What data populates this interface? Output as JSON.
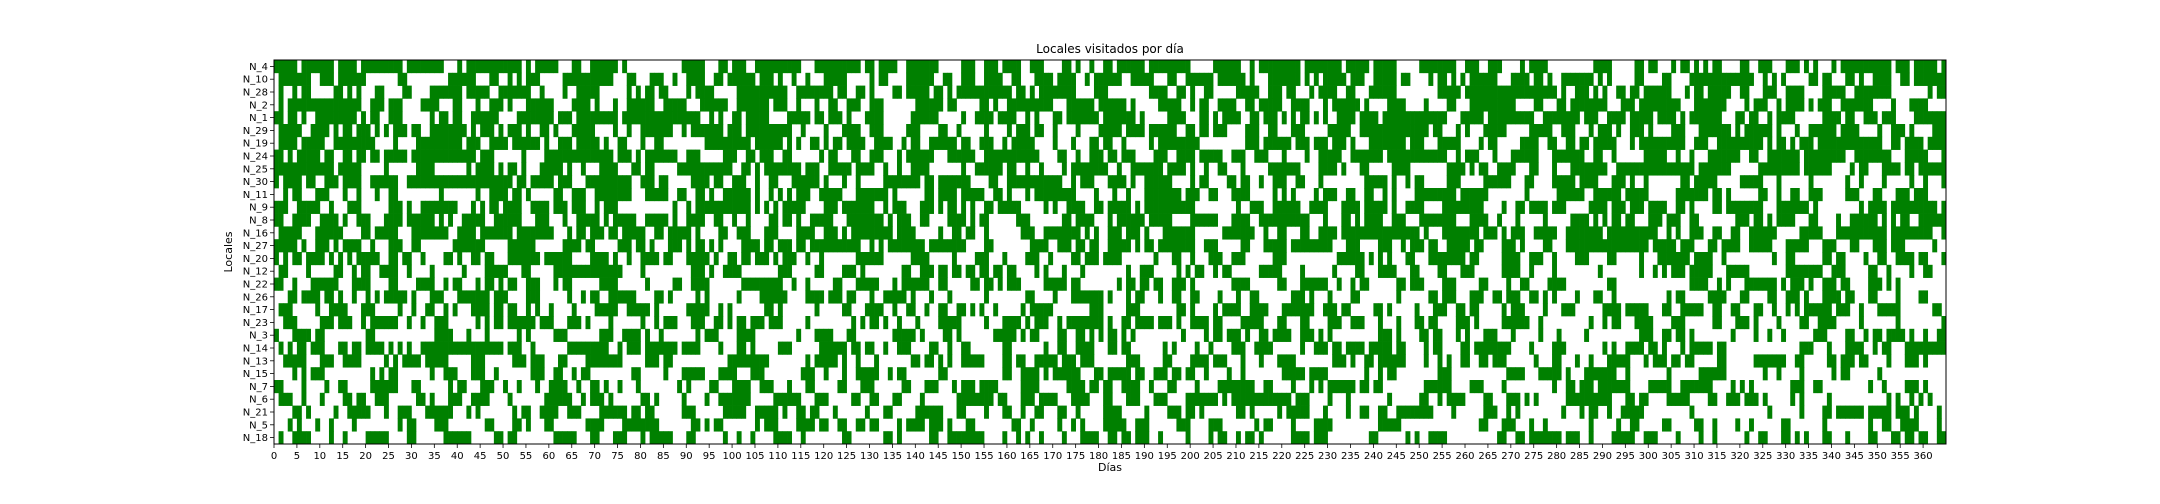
{
  "chart_data": {
    "type": "heatmap",
    "title": "Locales visitados por día",
    "xlabel": "Días",
    "ylabel": "Locales",
    "xlim": [
      0,
      365
    ],
    "xticks": [
      0,
      5,
      10,
      15,
      20,
      25,
      30,
      35,
      40,
      45,
      50,
      55,
      60,
      65,
      70,
      75,
      80,
      85,
      90,
      95,
      100,
      105,
      110,
      115,
      120,
      125,
      130,
      135,
      140,
      145,
      150,
      155,
      160,
      165,
      170,
      175,
      180,
      185,
      190,
      195,
      200,
      205,
      210,
      215,
      220,
      225,
      230,
      235,
      240,
      245,
      250,
      255,
      260,
      265,
      270,
      275,
      280,
      285,
      290,
      295,
      300,
      305,
      310,
      315,
      320,
      325,
      330,
      335,
      340,
      345,
      350,
      355,
      360
    ],
    "rows": [
      {
        "label": "N_4",
        "p": 0.62
      },
      {
        "label": "N_10",
        "p": 0.6
      },
      {
        "label": "N_28",
        "p": 0.62
      },
      {
        "label": "N_2",
        "p": 0.58
      },
      {
        "label": "N_1",
        "p": 0.6
      },
      {
        "label": "N_29",
        "p": 0.62
      },
      {
        "label": "N_19",
        "p": 0.6
      },
      {
        "label": "N_24",
        "p": 0.62
      },
      {
        "label": "N_25",
        "p": 0.6
      },
      {
        "label": "N_30",
        "p": 0.6
      },
      {
        "label": "N_11",
        "p": 0.58
      },
      {
        "label": "N_9",
        "p": 0.6
      },
      {
        "label": "N_8",
        "p": 0.6
      },
      {
        "label": "N_16",
        "p": 0.62
      },
      {
        "label": "N_27",
        "p": 0.6
      },
      {
        "label": "N_20",
        "p": 0.45
      },
      {
        "label": "N_12",
        "p": 0.42
      },
      {
        "label": "N_22",
        "p": 0.43
      },
      {
        "label": "N_26",
        "p": 0.42
      },
      {
        "label": "N_17",
        "p": 0.43
      },
      {
        "label": "N_23",
        "p": 0.42
      },
      {
        "label": "N_3",
        "p": 0.42
      },
      {
        "label": "N_14",
        "p": 0.43
      },
      {
        "label": "N_13",
        "p": 0.42
      },
      {
        "label": "N_15",
        "p": 0.42
      },
      {
        "label": "N_7",
        "p": 0.42
      },
      {
        "label": "N_6",
        "p": 0.42
      },
      {
        "label": "N_21",
        "p": 0.42
      },
      {
        "label": "N_5",
        "p": 0.42
      },
      {
        "label": "N_18",
        "p": 0.42
      }
    ],
    "colors": {
      "visited": "#008000",
      "not_visited": "#ffffff"
    },
    "grid": false,
    "legend": "none"
  }
}
